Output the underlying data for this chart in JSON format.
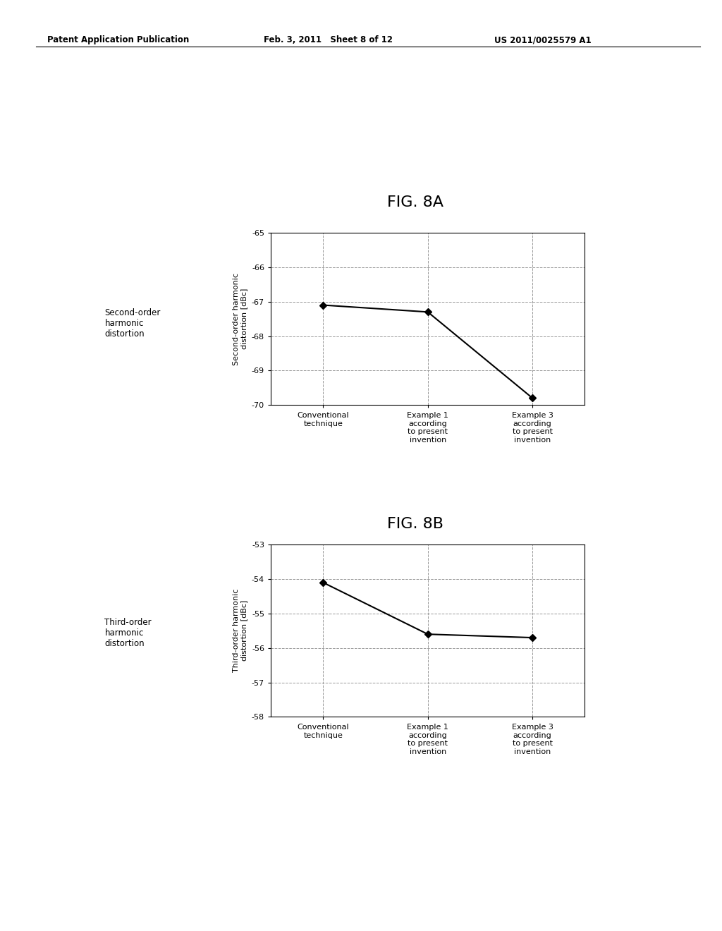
{
  "fig_title_8a": "FIG. 8A",
  "fig_title_8b": "FIG. 8B",
  "header_left": "Patent Application Publication",
  "header_center": "Feb. 3, 2011   Sheet 8 of 12",
  "header_right": "US 2011/0025579 A1",
  "chart_8a": {
    "x_labels": [
      "Conventional\ntechnique",
      "Example 1\naccording\nto present\ninvention",
      "Example 3\naccording\nto present\ninvention"
    ],
    "y_values": [
      -67.1,
      -67.3,
      -69.8
    ],
    "y_min": -70,
    "y_max": -65,
    "y_ticks": [
      -70,
      -69,
      -68,
      -67,
      -66,
      -65
    ],
    "ylabel": "Second-order harmonic\ndistortion [dBc]",
    "left_label": "Second-order\nharmonic\ndistortion"
  },
  "chart_8b": {
    "x_labels": [
      "Conventional\ntechnique",
      "Example 1\naccording\nto present\ninvention",
      "Example 3\naccording\nto present\ninvention"
    ],
    "y_values": [
      -54.1,
      -55.6,
      -55.7
    ],
    "y_min": -58,
    "y_max": -53,
    "y_ticks": [
      -58,
      -57,
      -56,
      -55,
      -54,
      -53
    ],
    "ylabel": "Third-order harmonic\ndistortion [dBc]",
    "left_label": "Third-order\nharmonic\ndistortion"
  },
  "line_color": "#000000",
  "marker": "D",
  "marker_size": 5,
  "background_color": "#ffffff",
  "grid_color": "#999999",
  "grid_style": "--",
  "font_color": "#000000"
}
